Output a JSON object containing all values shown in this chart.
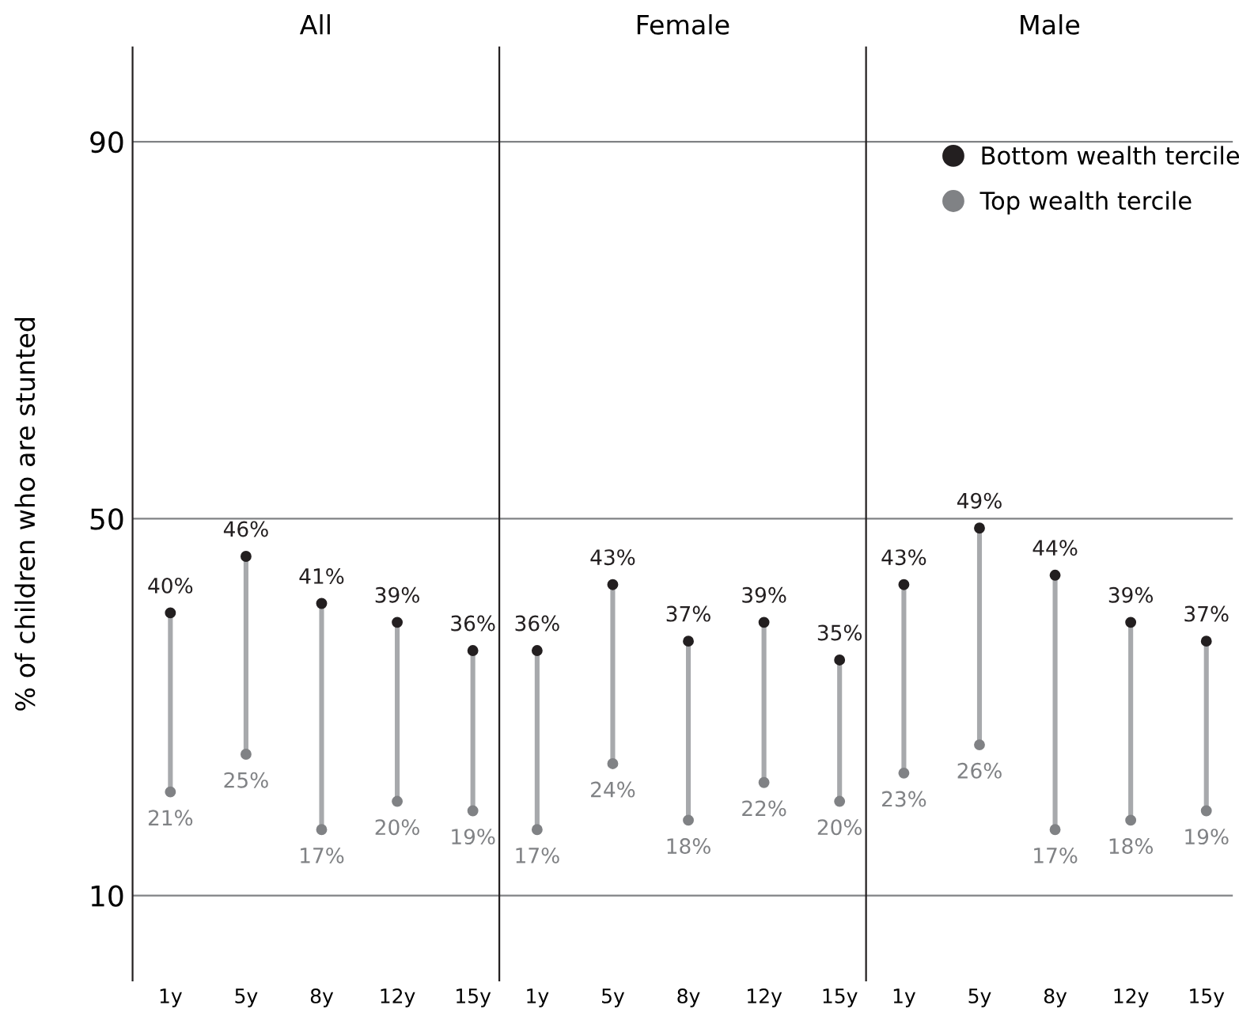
{
  "chart_data": [
    {
      "type": "scatter",
      "title": "All",
      "ylabel": "% of children who are stunted",
      "categories": [
        "1y",
        "5y",
        "8y",
        "12y",
        "15y"
      ],
      "ylim": [
        1,
        100
      ],
      "yticks": [
        10,
        50,
        90
      ],
      "grid": "y",
      "marker": "circle",
      "series": [
        {
          "color": "#231f20",
          "values": [
            40,
            46,
            41,
            39,
            36
          ],
          "value_labels": [
            "40%",
            "46%",
            "41%",
            "39%",
            "36%"
          ]
        },
        {
          "color": "#808285",
          "values": [
            21,
            25,
            17,
            20,
            19
          ],
          "value_labels": [
            "21%",
            "25%",
            "17%",
            "20%",
            "19%"
          ]
        }
      ]
    },
    {
      "type": "scatter",
      "title": "Female",
      "categories": [
        "1y",
        "5y",
        "8y",
        "12y",
        "15y"
      ],
      "ylim": [
        1,
        100
      ],
      "yticks": [
        10,
        50,
        90
      ],
      "grid": "y",
      "marker": "circle",
      "tick_labels": "x",
      "series": [
        {
          "color": "#231f20",
          "values": [
            36,
            43,
            37,
            39,
            35
          ],
          "value_labels": [
            "36%",
            "43%",
            "37%",
            "39%",
            "35%"
          ]
        },
        {
          "color": "#808285",
          "values": [
            17,
            24,
            18,
            22,
            20
          ],
          "value_labels": [
            "17%",
            "24%",
            "18%",
            "22%",
            "20%"
          ]
        }
      ]
    },
    {
      "type": "scatter",
      "title": "Male",
      "categories": [
        "1y",
        "5y",
        "8y",
        "12y",
        "15y"
      ],
      "ylim": [
        1,
        100
      ],
      "yticks": [
        10,
        50,
        90
      ],
      "grid": "y",
      "marker": "circle",
      "legend": "top right",
      "tick_labels": "x",
      "series": [
        {
          "name": "Bottom wealth tercile",
          "color": "#231f20",
          "values": [
            43,
            49,
            44,
            39,
            37
          ],
          "value_labels": [
            "43%",
            "49%",
            "44%",
            "39%",
            "37%"
          ]
        },
        {
          "name": "Top wealth tercile",
          "color": "#808285",
          "values": [
            23,
            26,
            17,
            18,
            19
          ],
          "value_labels": [
            "23%",
            "26%",
            "17%",
            "18%",
            "19%"
          ]
        }
      ]
    }
  ]
}
